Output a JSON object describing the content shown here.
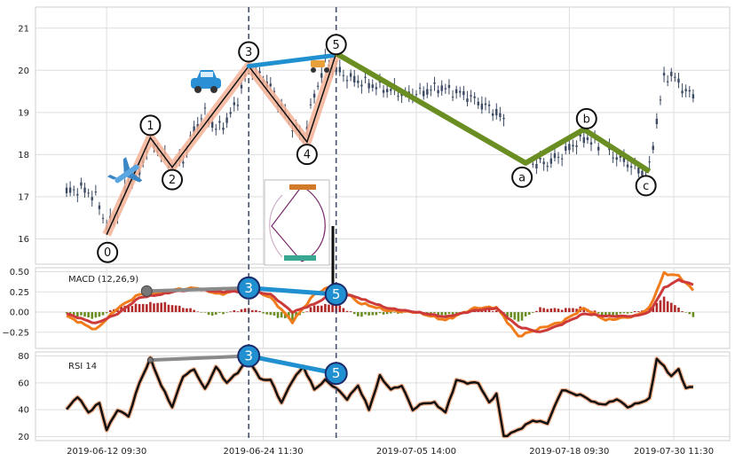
{
  "chart_data": {
    "type": "line",
    "x_ticks": [
      "2019-06-12 09:30",
      "2019-06-24 11:30",
      "2019-07-05 14:00",
      "2019-07-18 09:30",
      "2019-07-30 11:30"
    ],
    "price_panel": {
      "y_ticks": [
        "16",
        "17",
        "18",
        "19",
        "20",
        "21"
      ],
      "ylim": [
        15.4,
        21.5
      ],
      "candle_anchors": [
        [
          0,
          17.1
        ],
        [
          4,
          17.2
        ],
        [
          8,
          17.0
        ],
        [
          11,
          16.3
        ],
        [
          14,
          16.6
        ],
        [
          17,
          17.4
        ],
        [
          20,
          17.6
        ],
        [
          23,
          18.4
        ],
        [
          26,
          18.0
        ],
        [
          29,
          17.7
        ],
        [
          32,
          17.9
        ],
        [
          35,
          18.6
        ],
        [
          38,
          19.0
        ],
        [
          41,
          18.6
        ],
        [
          44,
          18.8
        ],
        [
          47,
          19.3
        ],
        [
          50,
          20.1
        ],
        [
          53,
          19.9
        ],
        [
          56,
          19.6
        ],
        [
          59,
          19.1
        ],
        [
          62,
          18.7
        ],
        [
          65,
          18.4
        ],
        [
          68,
          19.4
        ],
        [
          71,
          20.2
        ],
        [
          74,
          20.0
        ],
        [
          78,
          19.8
        ],
        [
          82,
          19.7
        ],
        [
          86,
          19.6
        ],
        [
          90,
          19.5
        ],
        [
          94,
          19.4
        ],
        [
          98,
          19.5
        ],
        [
          102,
          19.6
        ],
        [
          106,
          19.5
        ],
        [
          110,
          19.4
        ],
        [
          114,
          19.2
        ],
        [
          118,
          19.0
        ],
        [
          120,
          18.8
        ],
        [
          124,
          18.0
        ],
        [
          128,
          17.8
        ],
        [
          132,
          17.8
        ],
        [
          136,
          18.0
        ],
        [
          140,
          18.3
        ],
        [
          143,
          18.4
        ],
        [
          146,
          18.2
        ],
        [
          150,
          18.0
        ],
        [
          154,
          17.8
        ],
        [
          158,
          17.6
        ],
        [
          160,
          17.7
        ],
        [
          162,
          18.8
        ],
        [
          164,
          19.8
        ],
        [
          166,
          19.9
        ],
        [
          168,
          19.7
        ],
        [
          170,
          19.5
        ],
        [
          172,
          19.4
        ]
      ],
      "gap_ranges": [
        [
          121,
          127
        ],
        [
          147,
          148
        ]
      ],
      "elliott_impulse": {
        "labels": [
          "0",
          "1",
          "2",
          "3",
          "4",
          "5"
        ],
        "points": [
          [
            11,
            16.1
          ],
          [
            23,
            18.4
          ],
          [
            29,
            17.7
          ],
          [
            50,
            20.1
          ],
          [
            66,
            18.3
          ],
          [
            74,
            20.4
          ]
        ]
      },
      "elliott_correction": {
        "labels": [
          "a",
          "b",
          "c"
        ],
        "points": [
          [
            74,
            20.4
          ],
          [
            126,
            17.8
          ],
          [
            142,
            18.6
          ],
          [
            160,
            17.6
          ]
        ]
      },
      "connector_3_5": [
        [
          50,
          20.1
        ],
        [
          73,
          20.35
        ]
      ],
      "vlines": [
        50,
        74
      ]
    },
    "macd_panel": {
      "title": "MACD (12,26,9)",
      "y_ticks": [
        "0.50",
        "0.25",
        "0.00",
        "−0.25"
      ],
      "ylim": [
        -0.45,
        0.55
      ],
      "macd_anchors": [
        [
          0,
          -0.05
        ],
        [
          8,
          -0.22
        ],
        [
          14,
          0.05
        ],
        [
          20,
          0.22
        ],
        [
          26,
          0.25
        ],
        [
          30,
          0.28
        ],
        [
          36,
          0.3
        ],
        [
          42,
          0.22
        ],
        [
          50,
          0.3
        ],
        [
          56,
          0.18
        ],
        [
          62,
          -0.12
        ],
        [
          68,
          0.22
        ],
        [
          74,
          0.35
        ],
        [
          80,
          0.12
        ],
        [
          88,
          0.02
        ],
        [
          96,
          0.0
        ],
        [
          104,
          -0.1
        ],
        [
          112,
          0.05
        ],
        [
          118,
          0.06
        ],
        [
          124,
          -0.3
        ],
        [
          130,
          -0.2
        ],
        [
          136,
          -0.12
        ],
        [
          142,
          0.05
        ],
        [
          148,
          -0.1
        ],
        [
          156,
          -0.05
        ],
        [
          160,
          0.05
        ],
        [
          164,
          0.48
        ],
        [
          168,
          0.45
        ],
        [
          172,
          0.27
        ]
      ],
      "signal_anchors": [
        [
          0,
          -0.02
        ],
        [
          8,
          -0.14
        ],
        [
          14,
          -0.02
        ],
        [
          20,
          0.18
        ],
        [
          26,
          0.22
        ],
        [
          30,
          0.26
        ],
        [
          36,
          0.28
        ],
        [
          42,
          0.25
        ],
        [
          50,
          0.26
        ],
        [
          56,
          0.22
        ],
        [
          62,
          0.0
        ],
        [
          68,
          0.1
        ],
        [
          74,
          0.25
        ],
        [
          80,
          0.18
        ],
        [
          88,
          0.05
        ],
        [
          96,
          0.0
        ],
        [
          104,
          -0.06
        ],
        [
          112,
          0.02
        ],
        [
          118,
          0.05
        ],
        [
          124,
          -0.18
        ],
        [
          130,
          -0.25
        ],
        [
          136,
          -0.15
        ],
        [
          142,
          -0.02
        ],
        [
          148,
          -0.05
        ],
        [
          156,
          -0.05
        ],
        [
          160,
          0.0
        ],
        [
          164,
          0.3
        ],
        [
          168,
          0.4
        ],
        [
          172,
          0.34
        ]
      ],
      "hist_anchors": [
        [
          0,
          -0.02
        ],
        [
          8,
          -0.08
        ],
        [
          14,
          0.06
        ],
        [
          20,
          0.1
        ],
        [
          26,
          0.12
        ],
        [
          34,
          0.04
        ],
        [
          40,
          -0.04
        ],
        [
          50,
          0.05
        ],
        [
          56,
          -0.04
        ],
        [
          62,
          -0.1
        ],
        [
          68,
          0.08
        ],
        [
          74,
          0.1
        ],
        [
          80,
          -0.05
        ],
        [
          88,
          -0.02
        ],
        [
          96,
          0.0
        ],
        [
          104,
          -0.04
        ],
        [
          112,
          0.03
        ],
        [
          118,
          0.02
        ],
        [
          124,
          -0.12
        ],
        [
          130,
          0.05
        ],
        [
          136,
          0.04
        ],
        [
          142,
          0.06
        ],
        [
          148,
          -0.05
        ],
        [
          156,
          0.0
        ],
        [
          160,
          0.05
        ],
        [
          164,
          0.18
        ],
        [
          168,
          0.05
        ],
        [
          172,
          -0.06
        ]
      ],
      "markers": [
        {
          "label": "3",
          "point": [
            50,
            0.3
          ]
        },
        {
          "label": "5",
          "point": [
            74,
            0.22
          ]
        }
      ],
      "grey_marker": [
        22,
        0.26
      ]
    },
    "rsi_panel": {
      "title": "RSI 14",
      "y_ticks": [
        "80",
        "60",
        "40",
        "20"
      ],
      "ylim": [
        17,
        83
      ],
      "rsi_anchors": [
        [
          0,
          40
        ],
        [
          3,
          50
        ],
        [
          6,
          38
        ],
        [
          9,
          45
        ],
        [
          11,
          25
        ],
        [
          14,
          40
        ],
        [
          17,
          35
        ],
        [
          20,
          60
        ],
        [
          23,
          78
        ],
        [
          26,
          58
        ],
        [
          29,
          42
        ],
        [
          32,
          65
        ],
        [
          35,
          70
        ],
        [
          38,
          55
        ],
        [
          41,
          72
        ],
        [
          44,
          60
        ],
        [
          47,
          68
        ],
        [
          50,
          78
        ],
        [
          53,
          63
        ],
        [
          56,
          62
        ],
        [
          59,
          45
        ],
        [
          62,
          62
        ],
        [
          65,
          72
        ],
        [
          68,
          55
        ],
        [
          71,
          62
        ],
        [
          74,
          56
        ],
        [
          77,
          48
        ],
        [
          80,
          58
        ],
        [
          83,
          40
        ],
        [
          86,
          65
        ],
        [
          89,
          55
        ],
        [
          92,
          58
        ],
        [
          95,
          40
        ],
        [
          98,
          45
        ],
        [
          101,
          45
        ],
        [
          104,
          38
        ],
        [
          107,
          62
        ],
        [
          110,
          60
        ],
        [
          113,
          60
        ],
        [
          116,
          45
        ],
        [
          118,
          52
        ],
        [
          120,
          20
        ],
        [
          124,
          25
        ],
        [
          128,
          32
        ],
        [
          132,
          30
        ],
        [
          136,
          55
        ],
        [
          139,
          52
        ],
        [
          142,
          50
        ],
        [
          145,
          45
        ],
        [
          148,
          44
        ],
        [
          151,
          48
        ],
        [
          154,
          42
        ],
        [
          157,
          45
        ],
        [
          160,
          48
        ],
        [
          162,
          78
        ],
        [
          164,
          72
        ],
        [
          166,
          65
        ],
        [
          168,
          70
        ],
        [
          170,
          56
        ],
        [
          172,
          57
        ]
      ],
      "markers": [
        {
          "label": "3",
          "point": [
            50,
            80
          ]
        },
        {
          "label": "5",
          "point": [
            74,
            67
          ]
        }
      ],
      "grey_marker": [
        23,
        77
      ]
    }
  }
}
